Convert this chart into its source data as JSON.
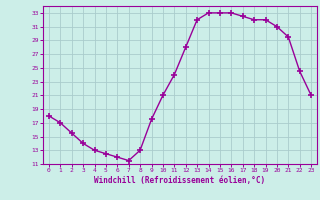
{
  "x": [
    0,
    1,
    2,
    3,
    4,
    5,
    6,
    7,
    8,
    9,
    10,
    11,
    12,
    13,
    14,
    15,
    16,
    17,
    18,
    19,
    20,
    21,
    22,
    23
  ],
  "y": [
    18,
    17,
    15.5,
    14,
    13,
    12.5,
    12,
    11.5,
    13,
    17.5,
    21,
    24,
    28,
    32,
    33,
    33,
    33,
    32.5,
    32,
    32,
    31,
    29.5,
    24.5,
    21
  ],
  "xlim": [
    -0.5,
    23.5
  ],
  "ylim": [
    11,
    34
  ],
  "yticks": [
    11,
    13,
    15,
    17,
    19,
    21,
    23,
    25,
    27,
    29,
    31,
    33
  ],
  "xticks": [
    0,
    1,
    2,
    3,
    4,
    5,
    6,
    7,
    8,
    9,
    10,
    11,
    12,
    13,
    14,
    15,
    16,
    17,
    18,
    19,
    20,
    21,
    22,
    23
  ],
  "xlabel": "Windchill (Refroidissement éolien,°C)",
  "line_color": "#990099",
  "marker": "+",
  "marker_size": 4,
  "background_color": "#cceee8",
  "grid_color": "#aacccc",
  "font_family": "monospace"
}
